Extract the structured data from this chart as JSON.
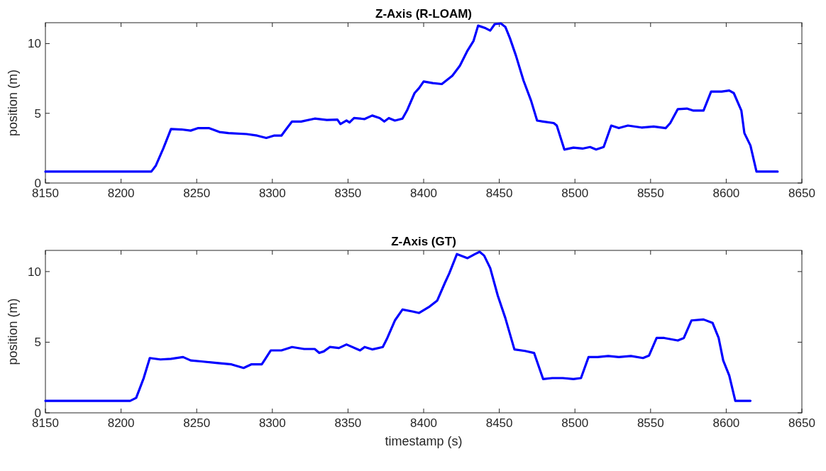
{
  "chart_data": [
    {
      "type": "line",
      "title": "Z-Axis (R-LOAM)",
      "ylabel": "position (m)",
      "xlim": [
        8150,
        8650
      ],
      "xticks": [
        8150,
        8200,
        8250,
        8300,
        8350,
        8400,
        8450,
        8500,
        8550,
        8600,
        8650
      ],
      "ylim": [
        0,
        11.5
      ],
      "yticks": [
        0,
        5,
        10
      ],
      "series": [
        {
          "color": "#0000ff",
          "x": [
            8150,
            8220,
            8223,
            8228,
            8233,
            8240,
            8246,
            8251,
            8258,
            8265,
            8271,
            8283,
            8290,
            8296,
            8301,
            8306,
            8309,
            8313,
            8319,
            8328,
            8336,
            8343,
            8345,
            8349,
            8351,
            8354,
            8361,
            8366,
            8371,
            8374,
            8377,
            8381,
            8386,
            8389,
            8394,
            8397,
            8400,
            8406,
            8412,
            8419,
            8424,
            8429,
            8433,
            8436,
            8441,
            8444,
            8447,
            8451,
            8454,
            8457,
            8461,
            8466,
            8471,
            8475,
            8479,
            8486,
            8488,
            8493,
            8499,
            8505,
            8510,
            8514,
            8519,
            8524,
            8529,
            8535,
            8544,
            8552,
            8560,
            8563,
            8568,
            8574,
            8578,
            8585,
            8590,
            8597,
            8602,
            8605,
            8610,
            8612,
            8616,
            8620,
            8634
          ],
          "values": [
            0.82,
            0.82,
            1.25,
            2.5,
            3.87,
            3.84,
            3.76,
            3.94,
            3.94,
            3.66,
            3.58,
            3.51,
            3.4,
            3.23,
            3.4,
            3.4,
            3.84,
            4.41,
            4.41,
            4.62,
            4.52,
            4.55,
            4.23,
            4.48,
            4.34,
            4.66,
            4.59,
            4.84,
            4.66,
            4.41,
            4.66,
            4.48,
            4.62,
            5.2,
            6.45,
            6.81,
            7.28,
            7.17,
            7.1,
            7.7,
            8.42,
            9.5,
            10.2,
            11.29,
            11.1,
            10.93,
            11.4,
            11.45,
            11.2,
            10.4,
            9.14,
            7.35,
            5.91,
            4.48,
            4.41,
            4.3,
            4.12,
            2.4,
            2.54,
            2.47,
            2.58,
            2.4,
            2.58,
            4.12,
            3.94,
            4.12,
            3.98,
            4.05,
            3.94,
            4.3,
            5.3,
            5.34,
            5.2,
            5.2,
            6.56,
            6.56,
            6.63,
            6.45,
            5.2,
            3.58,
            2.69,
            0.82,
            0.82
          ]
        }
      ]
    },
    {
      "type": "line",
      "title": "Z-Axis (GT)",
      "xlabel": "timestamp (s)",
      "ylabel": "position (m)",
      "xlim": [
        8150,
        8650
      ],
      "xticks": [
        8150,
        8200,
        8250,
        8300,
        8350,
        8400,
        8450,
        8500,
        8550,
        8600,
        8650
      ],
      "ylim": [
        0,
        11.5
      ],
      "yticks": [
        0,
        5,
        10
      ],
      "series": [
        {
          "color": "#0000ff",
          "x": [
            8150,
            8206,
            8210,
            8215,
            8219,
            8226,
            8233,
            8241,
            8246,
            8253,
            8263,
            8273,
            8281,
            8286,
            8293,
            8299,
            8306,
            8313,
            8321,
            8328,
            8331,
            8334,
            8338,
            8344,
            8349,
            8358,
            8361,
            8366,
            8373,
            8376,
            8381,
            8386,
            8393,
            8397,
            8404,
            8409,
            8414,
            8417,
            8422,
            8429,
            8434,
            8437,
            8440,
            8444,
            8449,
            8454,
            8460,
            8467,
            8473,
            8479,
            8485,
            8492,
            8499,
            8504,
            8509,
            8515,
            8522,
            8529,
            8537,
            8545,
            8549,
            8554,
            8559,
            8568,
            8572,
            8577,
            8585,
            8591,
            8595,
            8598,
            8602,
            8606,
            8616
          ],
          "values": [
            0.85,
            0.85,
            1.06,
            2.47,
            3.88,
            3.78,
            3.82,
            3.95,
            3.71,
            3.64,
            3.53,
            3.43,
            3.18,
            3.43,
            3.43,
            4.42,
            4.42,
            4.66,
            4.52,
            4.52,
            4.24,
            4.35,
            4.66,
            4.59,
            4.84,
            4.42,
            4.66,
            4.49,
            4.66,
            5.3,
            6.54,
            7.31,
            7.17,
            7.07,
            7.53,
            7.95,
            9.19,
            9.89,
            11.24,
            10.95,
            11.24,
            11.4,
            11.13,
            10.25,
            8.3,
            6.71,
            4.49,
            4.38,
            4.24,
            2.39,
            2.46,
            2.46,
            2.39,
            2.46,
            3.95,
            3.95,
            4.02,
            3.95,
            4.02,
            3.88,
            4.06,
            5.3,
            5.3,
            5.12,
            5.3,
            6.54,
            6.61,
            6.36,
            5.3,
            3.71,
            2.64,
            0.85,
            0.85
          ]
        }
      ]
    }
  ]
}
